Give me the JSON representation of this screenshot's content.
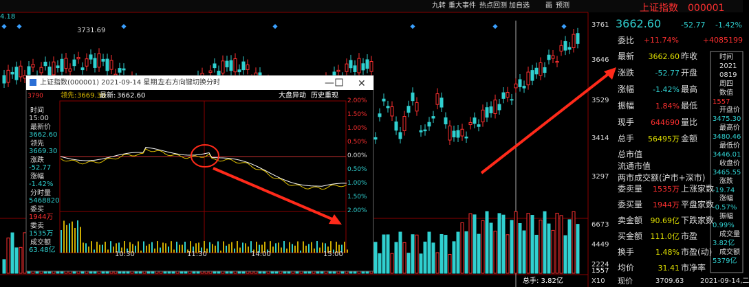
{
  "toolbar": {
    "buttons": [
      "九转",
      "重大事件",
      "热点回测",
      "加自选",
      "画",
      "预测"
    ]
  },
  "main_chart": {
    "left_top": "4.18",
    "high_label": "3731.69",
    "price_axis": [
      "3761",
      "3646",
      "3529",
      "3414",
      "3297"
    ],
    "volume_axis": [
      "6673",
      "4449",
      "2224",
      "1557",
      "X10"
    ],
    "bottom_label": "总手: 3.82亿"
  },
  "popup": {
    "title": "上证指数(000001) 2021-09-14 星期二",
    "hint": "左右方向键切换分时",
    "price_top": "3790",
    "lead_label": "领先:",
    "lead": "3669.30",
    "latest_label": "最新:",
    "latest": "3662.60",
    "buttons": [
      "大盘异动",
      "历史重现"
    ],
    "info": [
      [
        "时间",
        "15:00"
      ],
      [
        "最新价",
        "3662.60"
      ],
      [
        "领先",
        "3669.30"
      ],
      [
        "涨跌",
        "-52.77"
      ],
      [
        "涨幅",
        "-1.42%"
      ],
      [
        "分时量",
        "5468820"
      ],
      [
        "委买",
        "1944万"
      ],
      [
        "委卖",
        "1535万"
      ],
      [
        "成交额",
        "63.48亿"
      ]
    ],
    "pct_axis": [
      "2.00%",
      "1.50%",
      "1.00%",
      "0.50%",
      "0.00%",
      "0.50%",
      "1.00%",
      "1.50%",
      "2.00%"
    ],
    "time_axis": [
      "10:30",
      "11:30",
      "14:00",
      "15:00"
    ]
  },
  "quote_panel": {
    "name": "上证指数",
    "code": "000001",
    "price": "3662.60",
    "change": "-52.77",
    "change_pct": "-1.42%",
    "ratio_label": "委比",
    "ratio": "+11.74%",
    "ratio_diff": "+4085199",
    "rows": [
      [
        "最新",
        "3662.60",
        "昨收"
      ],
      [
        "涨跌",
        "-52.77",
        "开盘"
      ],
      [
        "涨幅",
        "-1.42%",
        "最高"
      ],
      [
        "振幅",
        "1.84%",
        "最低"
      ],
      [
        "现手",
        "644690",
        "量比"
      ],
      [
        "总手",
        "56495万",
        "金额"
      ]
    ],
    "market": [
      "总市值",
      "流通市值",
      "两市成交额(沪市+深市)"
    ],
    "rows2": [
      [
        "委卖量",
        "1535万",
        "上涨家数"
      ],
      [
        "委买量",
        "1944万",
        "平盘家数"
      ],
      [
        "卖金额",
        "90.69亿",
        "下跌家数"
      ],
      [
        "买金额",
        "111.0亿",
        "市盈"
      ],
      [
        "换手",
        "1.48%",
        "市盈(动)"
      ],
      [
        "均价",
        "31.41",
        "市净率"
      ]
    ],
    "footer_label": "现价",
    "footer_price": "3709.63",
    "footer_date": "2021-09-14,二"
  },
  "tooltip": [
    "时间",
    "2021",
    "0819",
    "周四",
    "数值",
    "1557",
    "开盘价",
    "3475.30",
    "最高价",
    "3480.46",
    "最低价",
    "3446.01",
    "收盘价",
    "3465.55",
    "涨跌",
    "-19.74",
    "涨幅",
    "-0.57%",
    "振幅",
    "0.99%",
    "成交量",
    "3.82亿",
    "成交额",
    "5379亿"
  ]
}
